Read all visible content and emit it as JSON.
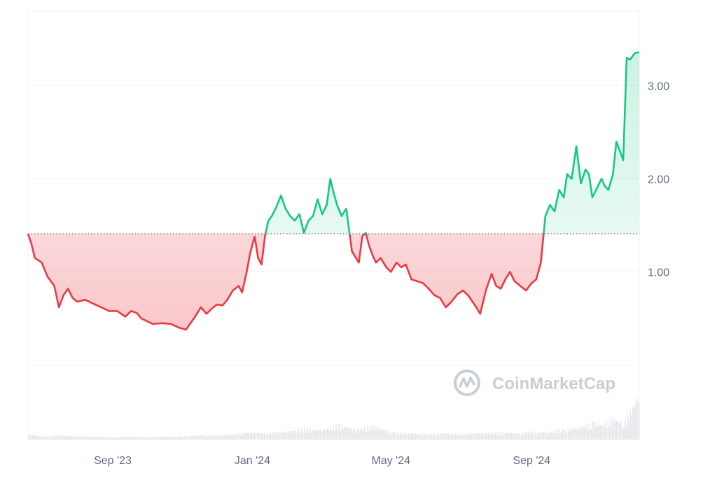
{
  "watermark": {
    "text": "CoinMarketCap",
    "icon": "coinmarketcap-logo-icon"
  },
  "colors": {
    "up": "#16c784",
    "down": "#ea3943",
    "up_fill": "#16c784",
    "down_fill": "#ea3943",
    "grid": "#eff2f5",
    "baseline": "#58667e",
    "volume": "#e4e7eb",
    "axis_text": "#616e85",
    "watermark": "#c9ced6"
  },
  "chart_data": {
    "type": "area",
    "title": "",
    "xlabel": "",
    "ylabel": "",
    "baseline": 1.41,
    "ylim": [
      -0.8,
      3.8
    ],
    "xlim": [
      "2023-06-19",
      "2024-12-04"
    ],
    "y_ticks": [
      {
        "value": 3.0,
        "label": "3.00"
      },
      {
        "value": 2.0,
        "label": "2.00"
      },
      {
        "value": 1.0,
        "label": "1.00"
      },
      {
        "value": 0.0,
        "label": ""
      }
    ],
    "x_ticks": [
      {
        "date": "2023-09-01",
        "label": "Sep '23"
      },
      {
        "date": "2024-01-01",
        "label": "Jan '24"
      },
      {
        "date": "2024-05-01",
        "label": "May '24"
      },
      {
        "date": "2024-09-01",
        "label": "Sep '24"
      }
    ],
    "grid": true,
    "series": [
      {
        "x": [
          "2023-06-19",
          "2023-06-22",
          "2023-06-25",
          "2023-07-01",
          "2023-07-06",
          "2023-07-12",
          "2023-07-16",
          "2023-07-20",
          "2023-07-24",
          "2023-07-28",
          "2023-08-01",
          "2023-08-08",
          "2023-08-15",
          "2023-08-22",
          "2023-08-29",
          "2023-09-05",
          "2023-09-12",
          "2023-09-17",
          "2023-09-22",
          "2023-09-26",
          "2023-10-01",
          "2023-10-06",
          "2023-10-14",
          "2023-10-22",
          "2023-10-29",
          "2023-11-04",
          "2023-11-08",
          "2023-11-12",
          "2023-11-17",
          "2023-11-22",
          "2023-11-26",
          "2023-12-01",
          "2023-12-06",
          "2023-12-10",
          "2023-12-15",
          "2023-12-20",
          "2023-12-23",
          "2023-12-27",
          "2023-12-30",
          "2024-01-03",
          "2024-01-06",
          "2024-01-09",
          "2024-01-12",
          "2024-01-15",
          "2024-01-18",
          "2024-01-22",
          "2024-01-26",
          "2024-01-30",
          "2024-02-03",
          "2024-02-07",
          "2024-02-11",
          "2024-02-15",
          "2024-02-19",
          "2024-02-23",
          "2024-02-27",
          "2024-03-02",
          "2024-03-06",
          "2024-03-09",
          "2024-03-12",
          "2024-03-15",
          "2024-03-19",
          "2024-03-23",
          "2024-03-28",
          "2024-04-03",
          "2024-04-06",
          "2024-04-09",
          "2024-04-12",
          "2024-04-15",
          "2024-04-18",
          "2024-04-22",
          "2024-04-27",
          "2024-05-01",
          "2024-05-06",
          "2024-05-10",
          "2024-05-14",
          "2024-05-19",
          "2024-05-24",
          "2024-05-29",
          "2024-06-03",
          "2024-06-08",
          "2024-06-13",
          "2024-06-18",
          "2024-06-23",
          "2024-06-28",
          "2024-07-03",
          "2024-07-08",
          "2024-07-13",
          "2024-07-18",
          "2024-07-23",
          "2024-07-28",
          "2024-08-01",
          "2024-08-05",
          "2024-08-09",
          "2024-08-13",
          "2024-08-17",
          "2024-08-22",
          "2024-08-27",
          "2024-09-01",
          "2024-09-05",
          "2024-09-09",
          "2024-09-13",
          "2024-09-17",
          "2024-09-21",
          "2024-09-25",
          "2024-09-29",
          "2024-10-02",
          "2024-10-06",
          "2024-10-10",
          "2024-10-14",
          "2024-10-18",
          "2024-10-21",
          "2024-10-24",
          "2024-10-28",
          "2024-11-01",
          "2024-11-04",
          "2024-11-07",
          "2024-11-11",
          "2024-11-14",
          "2024-11-17",
          "2024-11-20",
          "2024-11-23",
          "2024-11-26",
          "2024-11-30",
          "2024-12-04"
        ],
        "values": [
          1.41,
          1.3,
          1.15,
          1.1,
          0.95,
          0.85,
          0.62,
          0.75,
          0.82,
          0.72,
          0.68,
          0.7,
          0.66,
          0.62,
          0.58,
          0.58,
          0.52,
          0.58,
          0.56,
          0.5,
          0.47,
          0.44,
          0.45,
          0.44,
          0.4,
          0.38,
          0.45,
          0.52,
          0.62,
          0.55,
          0.6,
          0.65,
          0.64,
          0.7,
          0.8,
          0.85,
          0.78,
          1.0,
          1.2,
          1.38,
          1.15,
          1.08,
          1.38,
          1.55,
          1.6,
          1.7,
          1.82,
          1.68,
          1.6,
          1.55,
          1.62,
          1.42,
          1.55,
          1.6,
          1.78,
          1.62,
          1.72,
          2.0,
          1.85,
          1.72,
          1.6,
          1.68,
          1.22,
          1.1,
          1.38,
          1.42,
          1.28,
          1.18,
          1.1,
          1.15,
          1.05,
          1.0,
          1.1,
          1.05,
          1.08,
          0.92,
          0.9,
          0.88,
          0.82,
          0.75,
          0.72,
          0.62,
          0.68,
          0.76,
          0.8,
          0.74,
          0.65,
          0.55,
          0.8,
          0.98,
          0.85,
          0.82,
          0.92,
          1.0,
          0.9,
          0.85,
          0.8,
          0.88,
          0.92,
          1.1,
          1.6,
          1.72,
          1.65,
          1.88,
          1.8,
          2.05,
          2.0,
          2.35,
          1.95,
          2.1,
          2.05,
          1.8,
          1.9,
          2.0,
          1.92,
          1.88,
          2.05,
          2.4,
          2.3,
          2.2,
          3.3,
          3.28,
          3.35,
          3.36
        ]
      }
    ],
    "volume": {
      "x": [
        "2023-06-19",
        "2023-07-01",
        "2023-07-15",
        "2023-08-01",
        "2023-08-15",
        "2023-09-01",
        "2023-09-15",
        "2023-10-01",
        "2023-10-15",
        "2023-11-01",
        "2023-11-15",
        "2023-12-01",
        "2023-12-15",
        "2024-01-01",
        "2024-01-15",
        "2024-02-01",
        "2024-02-15",
        "2024-03-01",
        "2024-03-15",
        "2024-04-01",
        "2024-04-15",
        "2024-05-01",
        "2024-05-15",
        "2024-06-01",
        "2024-06-15",
        "2024-07-01",
        "2024-07-15",
        "2024-08-01",
        "2024-08-15",
        "2024-09-01",
        "2024-09-15",
        "2024-10-01",
        "2024-10-15",
        "2024-10-25",
        "2024-11-01",
        "2024-11-10",
        "2024-11-20",
        "2024-11-28",
        "2024-12-04"
      ],
      "values": [
        0.05,
        0.03,
        0.04,
        0.03,
        0.03,
        0.02,
        0.03,
        0.02,
        0.03,
        0.03,
        0.04,
        0.04,
        0.05,
        0.07,
        0.06,
        0.08,
        0.1,
        0.09,
        0.14,
        0.1,
        0.13,
        0.07,
        0.06,
        0.05,
        0.06,
        0.05,
        0.06,
        0.07,
        0.06,
        0.07,
        0.07,
        0.1,
        0.12,
        0.16,
        0.13,
        0.2,
        0.15,
        0.3,
        0.45
      ]
    }
  }
}
